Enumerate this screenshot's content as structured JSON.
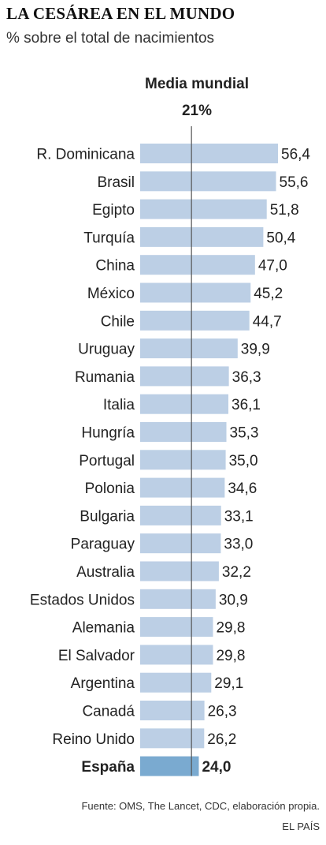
{
  "header": {
    "title": "LA CESÁREA EN EL MUNDO",
    "subtitle": "% sobre el total de nacimientos"
  },
  "reference": {
    "label": "Media mundial",
    "value_text": "21%",
    "value": 21
  },
  "chart_data": {
    "type": "bar",
    "orientation": "horizontal",
    "categories": [
      "R. Dominicana",
      "Brasil",
      "Egipto",
      "Turquía",
      "China",
      "México",
      "Chile",
      "Uruguay",
      "Rumania",
      "Italia",
      "Hungría",
      "Portugal",
      "Polonia",
      "Bulgaria",
      "Paraguay",
      "Australia",
      "Estados Unidos",
      "Alemania",
      "El Salvador",
      "Argentina",
      "Canadá",
      "Reino Unido",
      "España"
    ],
    "values": [
      56.4,
      55.6,
      51.8,
      50.4,
      47.0,
      45.2,
      44.7,
      39.9,
      36.3,
      36.1,
      35.3,
      35.0,
      34.6,
      33.1,
      33.0,
      32.2,
      30.9,
      29.8,
      29.8,
      29.1,
      26.3,
      26.2,
      24.0
    ],
    "value_labels": [
      "56,4",
      "55,6",
      "51,8",
      "50,4",
      "47,0",
      "45,2",
      "44,7",
      "39,9",
      "36,3",
      "36,1",
      "35,3",
      "35,0",
      "34,6",
      "33,1",
      "33,0",
      "32,2",
      "30,9",
      "29,8",
      "29,8",
      "29,1",
      "26,3",
      "26,2",
      "24,0"
    ],
    "highlight": "España",
    "xlim": [
      0,
      56.4
    ],
    "grid": false,
    "legend": "none"
  },
  "colors": {
    "bar": "#bccfe5",
    "bar_highlight": "#7aaad0",
    "reference_line": "#555555",
    "text": "#222222"
  },
  "footer": {
    "source": "Fuente: OMS, The Lancet, CDC, elaboración propia.",
    "credit": "EL PAÍS"
  }
}
